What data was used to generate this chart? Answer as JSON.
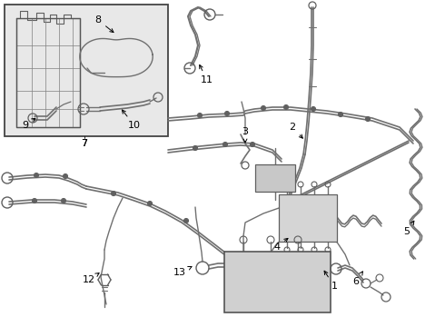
{
  "bg_color": "#ffffff",
  "line_color": "#808080",
  "dark_line": "#555555",
  "box_bg": "#e8e8e8",
  "figsize": [
    4.9,
    3.6
  ],
  "dpi": 100
}
